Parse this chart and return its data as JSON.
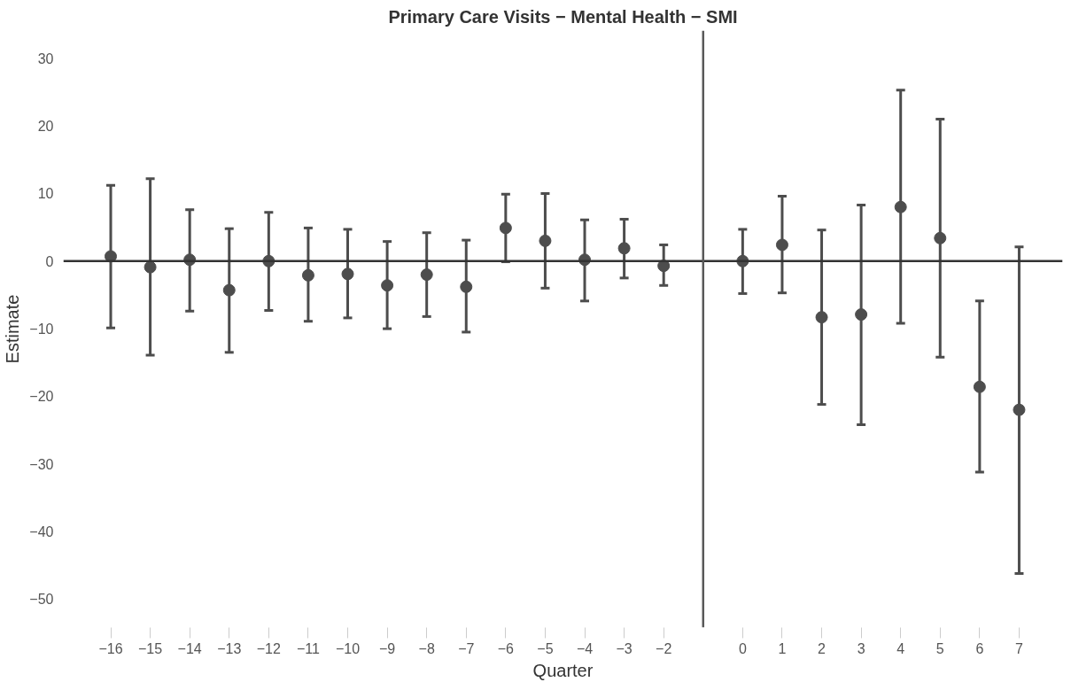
{
  "chart_data": {
    "type": "scatter",
    "title": "Primary Care Visits − Mental Health − SMI",
    "xlabel": "Quarter",
    "ylabel": "Estimate",
    "x": [
      -16,
      -15,
      -14,
      -13,
      -12,
      -11,
      -10,
      -9,
      -8,
      -7,
      -6,
      -5,
      -4,
      -3,
      -2,
      0,
      1,
      2,
      3,
      4,
      5,
      6,
      7
    ],
    "values": [
      0.7,
      -0.9,
      0.2,
      -4.3,
      0.0,
      -2.1,
      -1.9,
      -3.6,
      -2.0,
      -3.8,
      4.9,
      3.0,
      0.2,
      1.9,
      -0.7,
      0.0,
      2.4,
      -8.3,
      -7.9,
      8.0,
      3.4,
      -18.6,
      -22.0
    ],
    "errors": [
      [
        -9.9,
        11.2
      ],
      [
        -13.9,
        12.2
      ],
      [
        -7.4,
        7.6
      ],
      [
        -13.5,
        4.8
      ],
      [
        -7.3,
        7.2
      ],
      [
        -8.9,
        4.9
      ],
      [
        -8.4,
        4.7
      ],
      [
        -10.0,
        2.9
      ],
      [
        -8.2,
        4.2
      ],
      [
        -10.5,
        3.1
      ],
      [
        -0.1,
        9.9
      ],
      [
        -4.0,
        10.0
      ],
      [
        -5.9,
        6.1
      ],
      [
        -2.5,
        6.2
      ],
      [
        -3.6,
        2.4
      ],
      [
        -4.8,
        4.7
      ],
      [
        -4.7,
        9.6
      ],
      [
        -21.2,
        4.6
      ],
      [
        -24.2,
        8.3
      ],
      [
        -9.2,
        25.3
      ],
      [
        -14.2,
        21.0
      ],
      [
        -31.2,
        -5.9
      ],
      [
        -46.2,
        2.1
      ]
    ],
    "color": "#4d4d4d",
    "marker": "circle",
    "xlim": [
      -17.2,
      8.1
    ],
    "ylim": [
      -54.2,
      34.1
    ],
    "xticks": [
      -16,
      -15,
      -14,
      -13,
      -12,
      -11,
      -10,
      -9,
      -8,
      -7,
      -6,
      -5,
      -4,
      -3,
      -2,
      0,
      1,
      2,
      3,
      4,
      5,
      6,
      7
    ],
    "yticks": [
      -50,
      -40,
      -30,
      -20,
      -10,
      0,
      10,
      20,
      30
    ],
    "ref_lines": [
      {
        "axis": "y",
        "value": 0,
        "color": "#333333"
      },
      {
        "axis": "x",
        "value": -1,
        "color": "#595959"
      }
    ],
    "grid": false
  }
}
